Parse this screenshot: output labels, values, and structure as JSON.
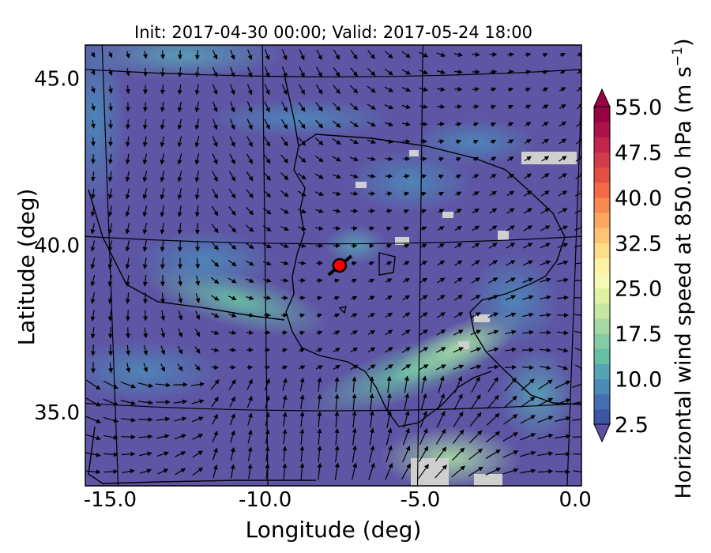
{
  "title": "Init: 2017-04-30 00:00; Valid: 2017-05-24 18:00",
  "xlabel": "Longitude (deg)",
  "ylabel": "Latitude (deg)",
  "colorbar_label": "Horizontal wind speed at 850.0 hPa (m s",
  "colorbar_label_exp": "−1",
  "colorbar_label_tail": ")",
  "colorbar_ticks": [
    "2.5",
    "10.0",
    "17.5",
    "25.0",
    "32.5",
    "40.0",
    "47.5",
    "55.0"
  ],
  "chart_data": {
    "type": "map",
    "xlim": [
      -15.8,
      0.2
    ],
    "ylim": [
      32.8,
      46.0
    ],
    "x_ticks": [
      {
        "label": "-15.0",
        "value": -15.0
      },
      {
        "label": "-10.0",
        "value": -10.0
      },
      {
        "label": "-5.0",
        "value": -5.0
      },
      {
        "label": "0.0",
        "value": 0.0
      }
    ],
    "y_ticks": [
      {
        "label": "35.0",
        "value": 35.0
      },
      {
        "label": "40.0",
        "value": 40.0
      },
      {
        "label": "45.0",
        "value": 45.0
      }
    ],
    "colorbar": {
      "min": 2.5,
      "max": 55.0,
      "step": 2.5,
      "extend": "both",
      "colors": [
        "#3c56a6",
        "#4470b3",
        "#4c8ab9",
        "#57a3b6",
        "#66bfa5",
        "#85cba4",
        "#a5d9a3",
        "#c5e7a1",
        "#e0f2a2",
        "#f5f9b3",
        "#fdf1a5",
        "#fedd89",
        "#fdc473",
        "#fca75f",
        "#f88a51",
        "#f26b46",
        "#e44f44",
        "#d33c4a",
        "#c1254b",
        "#aa124c",
        "#950343"
      ],
      "under_color": "#5e4fa2",
      "over_color": "#9e0142"
    },
    "marker": {
      "lon": -7.6,
      "lat": 39.4,
      "color": "#ff0000"
    }
  }
}
